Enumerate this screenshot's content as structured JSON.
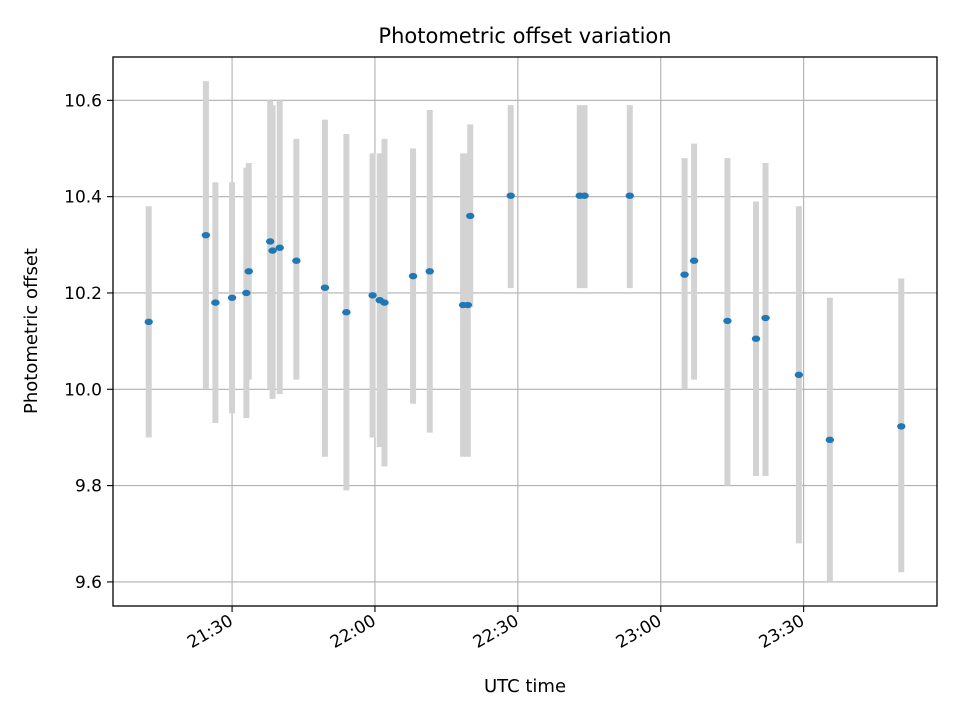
{
  "chart_data": {
    "type": "scatter",
    "title": "Photometric offset variation",
    "xlabel": "UTC time",
    "ylabel": "Photometric offset",
    "grid": true,
    "x_axis": {
      "kind": "time",
      "range": [
        "21:05",
        "23:58"
      ],
      "ticks": [
        "21:30",
        "22:00",
        "22:30",
        "23:00",
        "23:30"
      ]
    },
    "y_axis": {
      "range": [
        9.55,
        10.69
      ],
      "ticks": [
        "9.6",
        "9.8",
        "10.0",
        "10.2",
        "10.4",
        "10.6"
      ]
    },
    "point_color": "#1f77b4",
    "errorbar_color": "#d3d3d3",
    "points": [
      {
        "time": "21:12:30",
        "y": 10.14,
        "low": 9.9,
        "high": 10.38
      },
      {
        "time": "21:24:30",
        "y": 10.32,
        "low": 10.0,
        "high": 10.64
      },
      {
        "time": "21:26:30",
        "y": 10.18,
        "low": 9.93,
        "high": 10.43
      },
      {
        "time": "21:30:00",
        "y": 10.19,
        "low": 9.95,
        "high": 10.43
      },
      {
        "time": "21:33:00",
        "y": 10.2,
        "low": 9.94,
        "high": 10.46
      },
      {
        "time": "21:33:30",
        "y": 10.245,
        "low": 10.02,
        "high": 10.47
      },
      {
        "time": "21:38:00",
        "y": 10.307,
        "low": 10.0,
        "high": 10.6
      },
      {
        "time": "21:38:30",
        "y": 10.288,
        "low": 9.98,
        "high": 10.59
      },
      {
        "time": "21:40:00",
        "y": 10.294,
        "low": 9.99,
        "high": 10.6
      },
      {
        "time": "21:43:30",
        "y": 10.267,
        "low": 10.02,
        "high": 10.52
      },
      {
        "time": "21:49:30",
        "y": 10.211,
        "low": 9.86,
        "high": 10.56
      },
      {
        "time": "21:54:00",
        "y": 10.16,
        "low": 9.79,
        "high": 10.53
      },
      {
        "time": "21:59:30",
        "y": 10.195,
        "low": 9.9,
        "high": 10.49
      },
      {
        "time": "22:01:00",
        "y": 10.185,
        "low": 9.88,
        "high": 10.49
      },
      {
        "time": "22:02:00",
        "y": 10.18,
        "low": 9.84,
        "high": 10.52
      },
      {
        "time": "22:08:00",
        "y": 10.235,
        "low": 9.97,
        "high": 10.5
      },
      {
        "time": "22:11:30",
        "y": 10.245,
        "low": 9.91,
        "high": 10.58
      },
      {
        "time": "22:18:30",
        "y": 10.175,
        "low": 9.86,
        "high": 10.49
      },
      {
        "time": "22:19:30",
        "y": 10.175,
        "low": 9.86,
        "high": 10.49
      },
      {
        "time": "22:20:00",
        "y": 10.36,
        "low": 10.17,
        "high": 10.55
      },
      {
        "time": "22:28:30",
        "y": 10.402,
        "low": 10.21,
        "high": 10.59
      },
      {
        "time": "22:43:00",
        "y": 10.402,
        "low": 10.21,
        "high": 10.59
      },
      {
        "time": "22:44:00",
        "y": 10.402,
        "low": 10.21,
        "high": 10.59
      },
      {
        "time": "22:53:30",
        "y": 10.402,
        "low": 10.21,
        "high": 10.59
      },
      {
        "time": "23:05:00",
        "y": 10.238,
        "low": 10.0,
        "high": 10.48
      },
      {
        "time": "23:07:00",
        "y": 10.267,
        "low": 10.02,
        "high": 10.51
      },
      {
        "time": "23:14:00",
        "y": 10.142,
        "low": 9.8,
        "high": 10.48
      },
      {
        "time": "23:20:00",
        "y": 10.105,
        "low": 9.82,
        "high": 10.39
      },
      {
        "time": "23:22:00",
        "y": 10.148,
        "low": 9.82,
        "high": 10.47
      },
      {
        "time": "23:29:00",
        "y": 10.03,
        "low": 9.68,
        "high": 10.38
      },
      {
        "time": "23:35:30",
        "y": 9.895,
        "low": 9.6,
        "high": 10.19
      },
      {
        "time": "23:50:30",
        "y": 9.923,
        "low": 9.62,
        "high": 10.23
      }
    ]
  }
}
